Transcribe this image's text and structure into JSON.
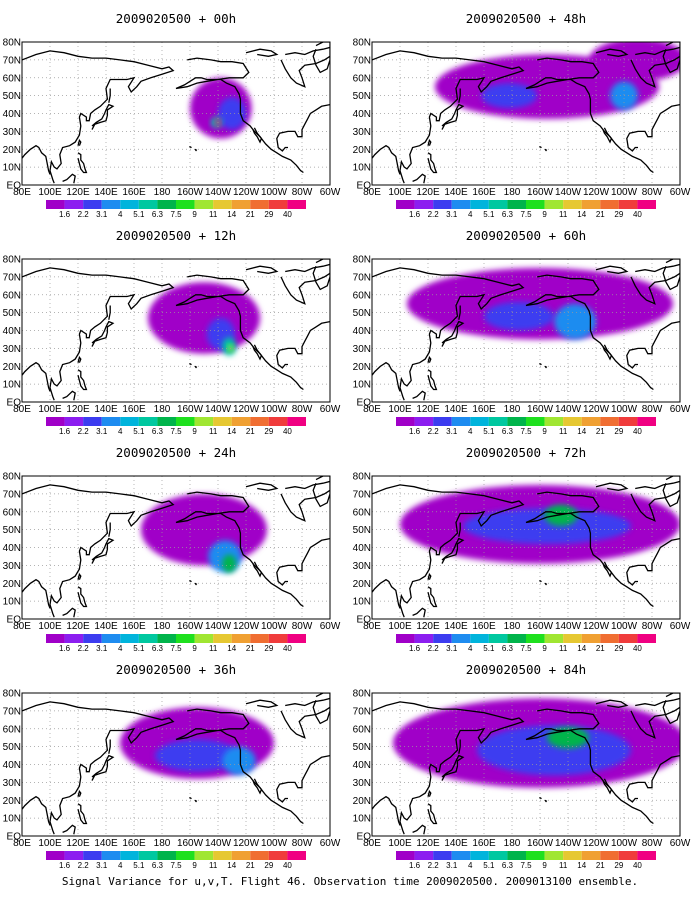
{
  "caption": "Signal Variance for u,v,T. Flight 46. Observation time 2009020500. 2009013100 ensemble.",
  "colors": {
    "levels": [
      "#a000c8",
      "#8c1ef0",
      "#3c3cf0",
      "#1e8cf0",
      "#00b4dc",
      "#00c8a0",
      "#00b44b",
      "#1ee01e",
      "#a0e632",
      "#e6c832",
      "#f0a032",
      "#f06e32",
      "#f03c3c",
      "#f00082"
    ],
    "coast": "#000000",
    "grid": "#9a9a9a"
  },
  "legend": {
    "labels": [
      "1.6",
      "2.2",
      "3.1",
      "4",
      "5.1",
      "6.3",
      "7.5",
      "9",
      "11",
      "14",
      "21",
      "29",
      "40"
    ]
  },
  "axes": {
    "lon_labels": [
      "80E",
      "100E",
      "120E",
      "140E",
      "160E",
      "180",
      "160W",
      "140W",
      "120W",
      "100W",
      "80W",
      "60W"
    ],
    "lat_labels": [
      "EQ",
      "10N",
      "20N",
      "30N",
      "40N",
      "50N",
      "60N",
      "70N",
      "80N"
    ]
  },
  "panels": [
    {
      "title": "2009020500 + 00h",
      "col": 0,
      "row": 0,
      "fields": [
        {
          "lon": 222,
          "lat": 43,
          "rlon": 22,
          "rlat": 17,
          "level": 0
        },
        {
          "lon": 230,
          "lat": 40,
          "rlon": 10,
          "rlat": 9,
          "level": 2
        },
        {
          "lon": 219,
          "lat": 35,
          "rlon": 4,
          "rlat": 3,
          "level": 5
        },
        {
          "lon": 220,
          "lat": 35,
          "rlon": 2,
          "rlat": 2,
          "level": 13
        }
      ]
    },
    {
      "title": "2009020500 + 48h",
      "col": 1,
      "row": 0,
      "fields": [
        {
          "lon": 205,
          "lat": 55,
          "rlon": 80,
          "rlat": 18,
          "level": 0
        },
        {
          "lon": 270,
          "lat": 70,
          "rlon": 35,
          "rlat": 12,
          "level": 0
        },
        {
          "lon": 178,
          "lat": 50,
          "rlon": 20,
          "rlat": 7,
          "level": 2
        },
        {
          "lon": 260,
          "lat": 50,
          "rlon": 10,
          "rlat": 8,
          "level": 3
        }
      ]
    },
    {
      "title": "2009020500 + 12h",
      "col": 0,
      "row": 1,
      "fields": [
        {
          "lon": 210,
          "lat": 47,
          "rlon": 40,
          "rlat": 20,
          "level": 0
        },
        {
          "lon": 222,
          "lat": 38,
          "rlon": 10,
          "rlat": 9,
          "level": 2
        },
        {
          "lon": 228,
          "lat": 31,
          "rlon": 5,
          "rlat": 5,
          "level": 5
        },
        {
          "lon": 229,
          "lat": 30,
          "rlon": 2,
          "rlat": 2,
          "level": 8
        }
      ]
    },
    {
      "title": "2009020500 + 60h",
      "col": 1,
      "row": 1,
      "fields": [
        {
          "lon": 200,
          "lat": 55,
          "rlon": 95,
          "rlat": 20,
          "level": 0
        },
        {
          "lon": 185,
          "lat": 48,
          "rlon": 25,
          "rlat": 8,
          "level": 2
        },
        {
          "lon": 225,
          "lat": 45,
          "rlon": 15,
          "rlat": 10,
          "level": 3
        }
      ]
    },
    {
      "title": "2009020500 + 24h",
      "col": 0,
      "row": 2,
      "fields": [
        {
          "lon": 210,
          "lat": 50,
          "rlon": 45,
          "rlat": 20,
          "level": 0
        },
        {
          "lon": 225,
          "lat": 35,
          "rlon": 12,
          "rlat": 9,
          "level": 3
        },
        {
          "lon": 228,
          "lat": 31,
          "rlon": 5,
          "rlat": 5,
          "level": 6
        }
      ]
    },
    {
      "title": "2009020500 + 72h",
      "col": 1,
      "row": 2,
      "fields": [
        {
          "lon": 200,
          "lat": 53,
          "rlon": 100,
          "rlat": 22,
          "level": 0
        },
        {
          "lon": 205,
          "lat": 52,
          "rlon": 60,
          "rlat": 10,
          "level": 2
        },
        {
          "lon": 215,
          "lat": 58,
          "rlon": 12,
          "rlat": 6,
          "level": 6
        }
      ]
    },
    {
      "title": "2009020500 + 36h",
      "col": 0,
      "row": 3,
      "fields": [
        {
          "lon": 205,
          "lat": 52,
          "rlon": 55,
          "rlat": 20,
          "level": 0
        },
        {
          "lon": 205,
          "lat": 45,
          "rlon": 30,
          "rlat": 9,
          "level": 2
        },
        {
          "lon": 235,
          "lat": 42,
          "rlon": 12,
          "rlat": 8,
          "level": 3
        }
      ]
    },
    {
      "title": "2009020500 + 84h",
      "col": 1,
      "row": 3,
      "fields": [
        {
          "lon": 200,
          "lat": 52,
          "rlon": 105,
          "rlat": 25,
          "level": 0
        },
        {
          "lon": 210,
          "lat": 48,
          "rlon": 55,
          "rlat": 14,
          "level": 2
        },
        {
          "lon": 220,
          "lat": 55,
          "rlon": 15,
          "rlat": 6,
          "level": 6
        }
      ]
    }
  ]
}
